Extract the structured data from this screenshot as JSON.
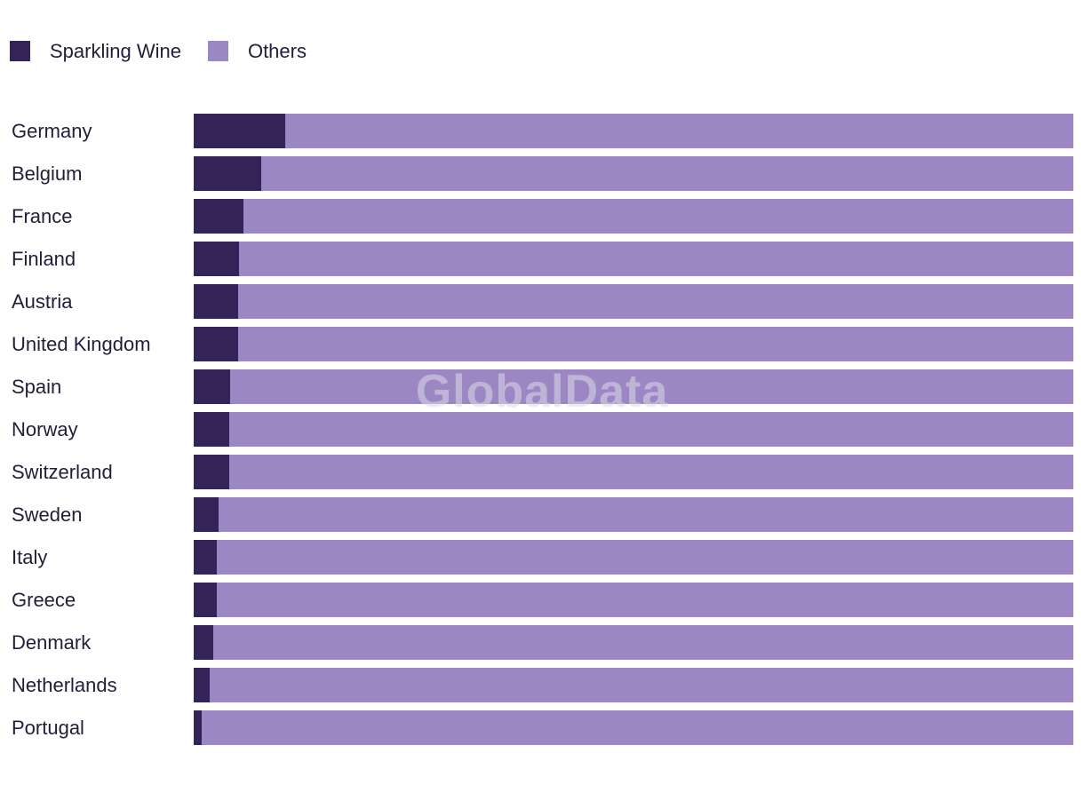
{
  "watermark": "GlobalData",
  "legend": {
    "items": [
      {
        "label": "Sparkling Wine",
        "color": "#352256"
      },
      {
        "label": "Others",
        "color": "#9c86c4"
      }
    ]
  },
  "chart_data": {
    "type": "bar",
    "orientation": "horizontal",
    "stacked": true,
    "unit": "%",
    "title": "",
    "xlabel": "",
    "ylabel": "",
    "xlim": [
      0,
      100
    ],
    "grid": false,
    "axes_visible": false,
    "legend_position": "top-left",
    "categories": [
      "Germany",
      "Belgium",
      "France",
      "Finland",
      "Austria",
      "United Kingdom",
      "Spain",
      "Norway",
      "Switzerland",
      "Sweden",
      "Italy",
      "Greece",
      "Denmark",
      "Netherlands",
      "Portugal"
    ],
    "series": [
      {
        "name": "Sparkling Wine",
        "color": "#352256",
        "values": [
          10.4,
          7.7,
          5.7,
          5.2,
          5.1,
          5.1,
          4.1,
          4.0,
          4.0,
          2.8,
          2.6,
          2.6,
          2.2,
          1.8,
          0.9
        ]
      },
      {
        "name": "Others",
        "color": "#9c86c4",
        "values": [
          89.6,
          92.3,
          94.3,
          94.8,
          94.9,
          94.9,
          95.9,
          96.0,
          96.0,
          97.2,
          97.4,
          97.4,
          97.8,
          98.2,
          99.1
        ]
      }
    ]
  }
}
